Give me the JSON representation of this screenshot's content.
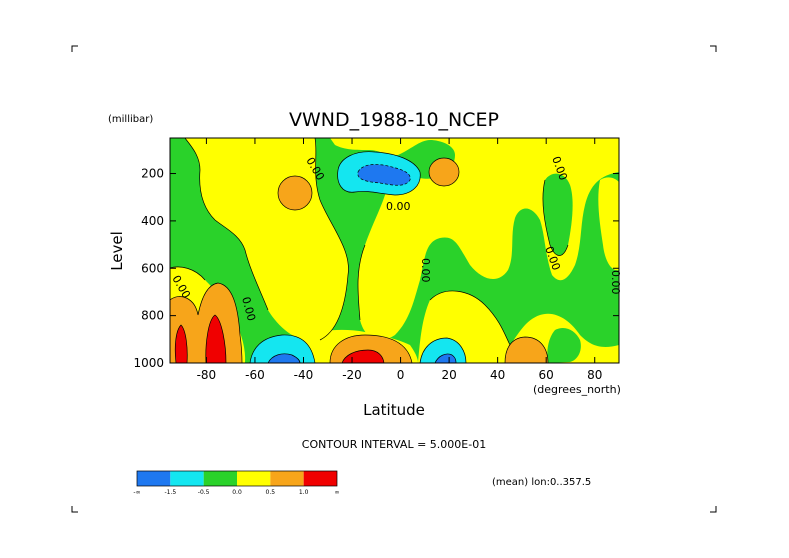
{
  "chart_data": {
    "type": "filled-contour",
    "title": "VWND_1988-10_NCEP",
    "ylabel": "Level",
    "yunits": "(millibar)",
    "xlabel": "Latitude",
    "xunits": "(degrees_north)",
    "xlim": [
      -95,
      90
    ],
    "ylim": [
      1000,
      50
    ],
    "y_inverted": true,
    "x_ticks": [
      -80,
      -60,
      -40,
      -20,
      0,
      20,
      40,
      60,
      80
    ],
    "y_ticks": [
      200,
      400,
      600,
      800,
      1000
    ],
    "contour_interval_text": "CONTOUR INTERVAL = 5.000E-01",
    "contour_label": "0.00",
    "subset_note": "(mean) lon:0..357.5",
    "colorbar": {
      "labels": [
        "-∞",
        "-1.5",
        "-0.5",
        "0.0",
        "0.5",
        "1.0",
        "∞"
      ],
      "colors": [
        "#1e78f0",
        "#14e6f0",
        "#2ad22a",
        "#ffff00",
        "#f7a51a",
        "#f00000"
      ]
    },
    "regions": [
      {
        "level": "-0.5..0.0",
        "color": "#2ad22a",
        "description": "negative background areas (weak northerly flow)"
      },
      {
        "level": "0.0..0.5",
        "color": "#ffff00",
        "description": "weak positive (southerly) flow"
      },
      {
        "level": "0.5..1.0",
        "color": "#f7a51a",
        "description": "moderate positive"
      },
      {
        "level": ">1.0",
        "color": "#f00000",
        "description": "strong positive near surface, ~-85, -75, -15 lat"
      },
      {
        "level": "-1.5..-0.5",
        "color": "#14e6f0",
        "description": "moderate negative near 200 mb, -20 to 10 lat"
      },
      {
        "level": "<-1.5",
        "color": "#1e78f0",
        "description": "strong negative cores"
      }
    ]
  }
}
